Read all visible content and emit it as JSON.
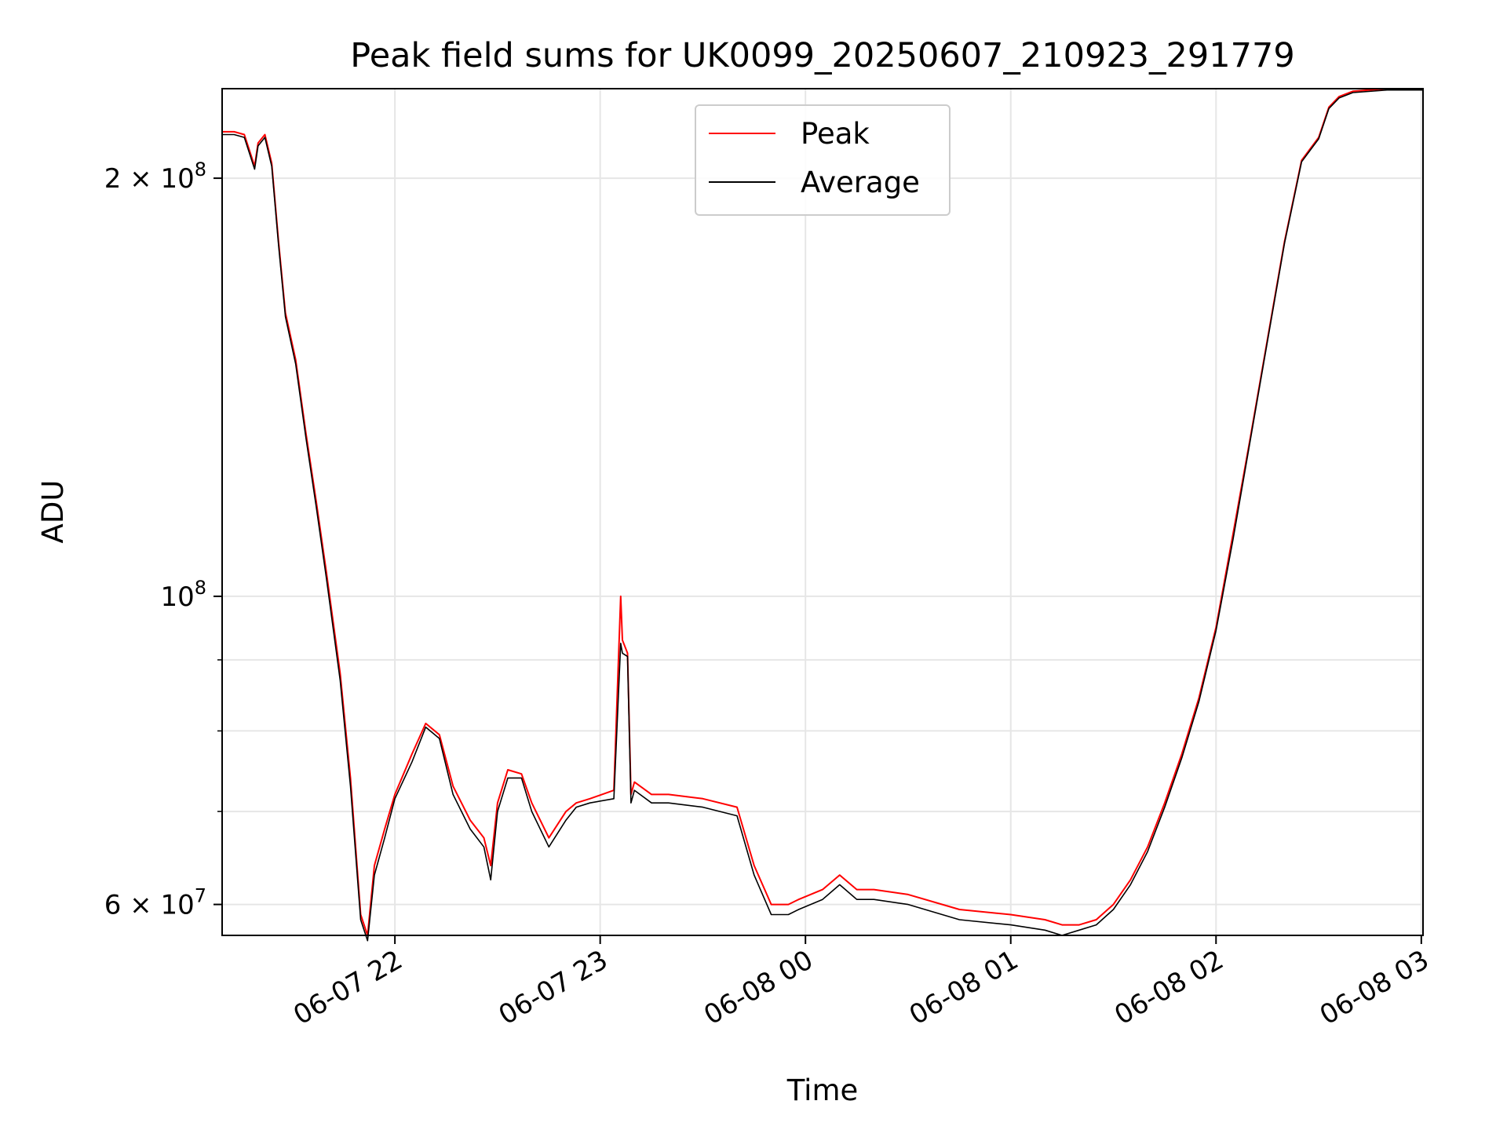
{
  "chart_data": {
    "type": "line",
    "title": "Peak field sums for UK0099_20250607_210923_291779",
    "xlabel": "Time",
    "ylabel": "ADU",
    "y_scale": "log",
    "ylim": [
      57000000,
      232000000
    ],
    "xlim": [
      "2025-06-07 21:09:30",
      "2025-06-08 03:00:30"
    ],
    "grid": true,
    "legend_position": "top-center",
    "x_ticks": [
      {
        "value": "2025-06-07 22:00",
        "label": "06-07 22"
      },
      {
        "value": "2025-06-07 23:00",
        "label": "06-07 23"
      },
      {
        "value": "2025-06-08 00:00",
        "label": "06-08 00"
      },
      {
        "value": "2025-06-08 01:00",
        "label": "06-08 01"
      },
      {
        "value": "2025-06-08 02:00",
        "label": "06-08 02"
      },
      {
        "value": "2025-06-08 03:00",
        "label": "06-08 03"
      }
    ],
    "y_ticks": [
      {
        "value": 60000000,
        "label_base": "6 × 10",
        "label_exp": "7"
      },
      {
        "value": 100000000,
        "label_base": "10",
        "label_exp": "8"
      },
      {
        "value": 200000000,
        "label_base": "2 × 10",
        "label_exp": "8"
      }
    ],
    "y_minor_ticks": [
      70000000,
      80000000,
      90000000
    ],
    "x": [
      "2025-06-07 21:09:30",
      "2025-06-07 21:13:00",
      "2025-06-07 21:16:00",
      "2025-06-07 21:19:00",
      "2025-06-07 21:20:00",
      "2025-06-07 21:22:00",
      "2025-06-07 21:24:00",
      "2025-06-07 21:26:00",
      "2025-06-07 21:28:00",
      "2025-06-07 21:31:00",
      "2025-06-07 21:34:00",
      "2025-06-07 21:37:00",
      "2025-06-07 21:40:00",
      "2025-06-07 21:44:00",
      "2025-06-07 21:47:00",
      "2025-06-07 21:50:00",
      "2025-06-07 21:52:00",
      "2025-06-07 21:54:00",
      "2025-06-07 21:57:00",
      "2025-06-07 22:00:00",
      "2025-06-07 22:05:00",
      "2025-06-07 22:09:00",
      "2025-06-07 22:13:00",
      "2025-06-07 22:17:00",
      "2025-06-07 22:22:00",
      "2025-06-07 22:26:00",
      "2025-06-07 22:28:00",
      "2025-06-07 22:30:00",
      "2025-06-07 22:33:00",
      "2025-06-07 22:37:00",
      "2025-06-07 22:40:00",
      "2025-06-07 22:45:00",
      "2025-06-07 22:50:00",
      "2025-06-07 22:53:00",
      "2025-06-07 22:57:00",
      "2025-06-07 23:04:00",
      "2025-06-07 23:06:00",
      "2025-06-07 23:06:30",
      "2025-06-07 23:08:00",
      "2025-06-07 23:09:00",
      "2025-06-07 23:10:00",
      "2025-06-07 23:15:00",
      "2025-06-07 23:20:00",
      "2025-06-07 23:30:00",
      "2025-06-07 23:40:00",
      "2025-06-07 23:45:00",
      "2025-06-07 23:50:00",
      "2025-06-07 23:55:00",
      "2025-06-07 23:58:00",
      "2025-06-08 00:05:00",
      "2025-06-08 00:10:00",
      "2025-06-08 00:15:00",
      "2025-06-08 00:20:00",
      "2025-06-08 00:30:00",
      "2025-06-08 00:45:00",
      "2025-06-08 01:00:00",
      "2025-06-08 01:10:00",
      "2025-06-08 01:15:00",
      "2025-06-08 01:20:00",
      "2025-06-08 01:25:00",
      "2025-06-08 01:30:00",
      "2025-06-08 01:35:00",
      "2025-06-08 01:40:00",
      "2025-06-08 01:45:00",
      "2025-06-08 01:50:00",
      "2025-06-08 01:55:00",
      "2025-06-08 02:00:00",
      "2025-06-08 02:05:00",
      "2025-06-08 02:10:00",
      "2025-06-08 02:15:00",
      "2025-06-08 02:20:00",
      "2025-06-08 02:25:00",
      "2025-06-08 02:30:00",
      "2025-06-08 02:33:00",
      "2025-06-08 02:36:00",
      "2025-06-08 02:40:00",
      "2025-06-08 02:50:00",
      "2025-06-08 03:00:30"
    ],
    "series": [
      {
        "name": "Peak",
        "color": "#ff0000",
        "values": [
          216000000,
          216000000,
          215000000,
          204000000,
          212000000,
          215000000,
          205000000,
          180000000,
          160000000,
          148000000,
          131000000,
          117000000,
          104000000,
          88000000,
          74000000,
          59000000,
          57000000,
          64000000,
          68000000,
          72000000,
          77000000,
          81000000,
          79500000,
          73000000,
          69000000,
          67000000,
          64000000,
          71000000,
          75000000,
          74500000,
          71000000,
          67000000,
          70000000,
          71000000,
          71500000,
          72500000,
          100000000,
          93000000,
          91000000,
          72000000,
          73500000,
          72000000,
          72000000,
          71500000,
          70500000,
          64000000,
          60000000,
          60000000,
          60500000,
          61500000,
          63000000,
          61500000,
          61500000,
          61000000,
          59500000,
          59000000,
          58500000,
          58000000,
          58000000,
          58500000,
          60000000,
          62500000,
          66000000,
          71000000,
          77000000,
          84500000,
          95000000,
          111000000,
          130000000,
          153000000,
          180000000,
          206000000,
          214000000,
          225000000,
          229000000,
          231000000,
          232000000,
          232000000
        ]
      },
      {
        "name": "Average",
        "color": "#000000",
        "values": [
          215000000,
          215000000,
          214000000,
          203000000,
          211000000,
          214000000,
          204000000,
          179000000,
          159000000,
          147000000,
          130000000,
          116000000,
          103000000,
          87000000,
          73000000,
          58500000,
          56500000,
          63000000,
          67000000,
          71500000,
          76000000,
          80500000,
          79000000,
          72000000,
          68000000,
          66000000,
          62500000,
          70000000,
          74000000,
          74000000,
          70000000,
          66000000,
          69000000,
          70500000,
          71000000,
          71500000,
          92500000,
          91000000,
          90500000,
          71000000,
          72500000,
          71000000,
          71000000,
          70500000,
          69500000,
          63000000,
          59000000,
          59000000,
          59500000,
          60500000,
          62000000,
          60500000,
          60500000,
          60000000,
          58500000,
          58000000,
          57500000,
          57000000,
          57500000,
          58000000,
          59500000,
          62000000,
          65500000,
          70500000,
          76500000,
          84000000,
          94500000,
          110000000,
          129500000,
          152500000,
          179500000,
          205500000,
          213500000,
          224500000,
          228500000,
          230500000,
          231500000,
          231500000
        ]
      }
    ]
  }
}
